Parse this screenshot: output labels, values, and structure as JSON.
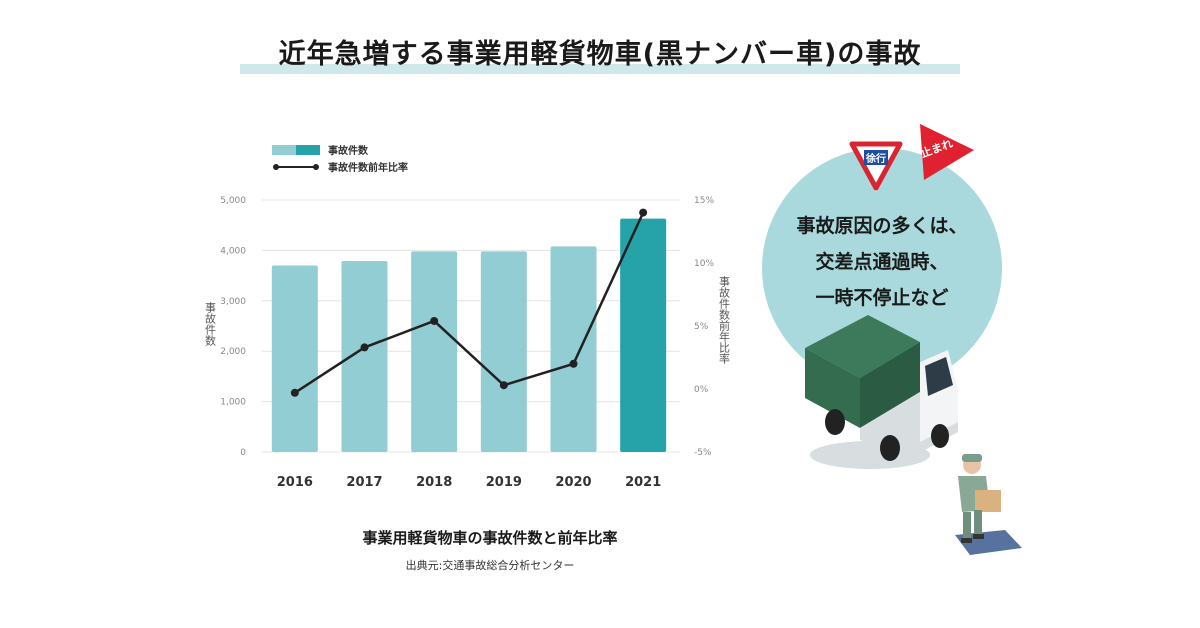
{
  "header": {
    "title": "近年急増する事業用軽貨物車(黒ナンバー車)の事故"
  },
  "chart_data": {
    "type": "bar+line",
    "categories": [
      "2016",
      "2017",
      "2018",
      "2019",
      "2020",
      "2021"
    ],
    "series": [
      {
        "name": "事故件数",
        "type": "bar",
        "axis": "left",
        "values": [
          3700,
          3790,
          3980,
          3980,
          4080,
          4630
        ]
      },
      {
        "name": "事故件数前年比率",
        "type": "line",
        "axis": "right",
        "values": [
          -0.3,
          3.3,
          5.4,
          0.3,
          2.0,
          14.0
        ]
      }
    ],
    "ylabel": "事故件数",
    "y2label": "事故件数前年比率",
    "ylim": [
      0,
      5000
    ],
    "y2lim": [
      -5,
      15
    ],
    "yticks": [
      "0",
      "1,000",
      "2,000",
      "3,000",
      "4,000",
      "5,000"
    ],
    "y2ticks": [
      "-5%",
      "0%",
      "5%",
      "10%",
      "15%"
    ],
    "legend_position": "top-left",
    "colors": {
      "bar": "#92cdd3",
      "bar_highlight": "#26a2a9",
      "line": "#222222"
    }
  },
  "caption": "事業用軽貨物車の事故件数と前年比率",
  "source": "出典元:交通事故総合分析センター",
  "callout": {
    "lines": [
      "事故原因の多くは、",
      "交差点通過時、",
      "一時不停止など"
    ],
    "sign_yield": "徐行",
    "sign_stop": "止まれ"
  },
  "colors": {
    "bubble": "#a9d9dd",
    "title_underline": "#cfe8ea"
  }
}
